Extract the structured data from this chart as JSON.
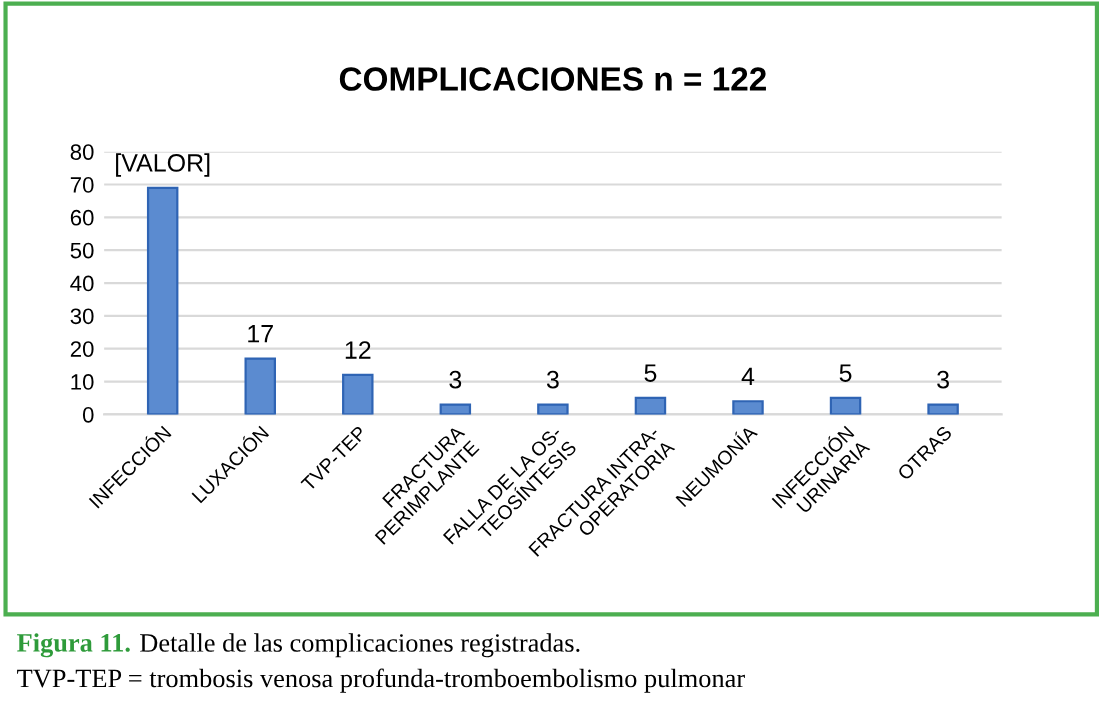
{
  "chart_data": {
    "type": "bar",
    "title": "COMPLICACIONES n = 122",
    "categories": [
      "INFECCIÓN",
      "LUXACIÓN",
      "TVP-TEP",
      "FRACTURA\nPERIMPLANTE",
      "FALLA DE LA OS-\nTEOSÍNTESIS",
      "FRACTURA INTRA-\nOPERATORIA",
      "NEUMONÍA",
      "INFECCIÓN\nURINARIA",
      "OTRAS"
    ],
    "values": [
      69,
      17,
      12,
      3,
      3,
      5,
      4,
      5,
      3
    ],
    "value_labels": [
      "[VALOR]",
      "17",
      "12",
      "3",
      "3",
      "5",
      "4",
      "5",
      "3"
    ],
    "color": "#5b8bd0",
    "ylim": [
      0,
      80
    ],
    "yticks": [
      0,
      10,
      20,
      30,
      40,
      50,
      60,
      70,
      80
    ],
    "grid": "y",
    "annotations": [
      "Figura 11.",
      "Detalle de las complicaciones registradas.",
      "TVP-TEP = trombosis venosa profunda-tromboembolismo pulmonar"
    ]
  }
}
